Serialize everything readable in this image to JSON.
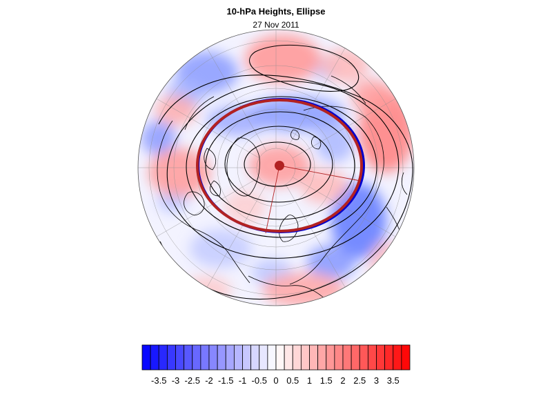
{
  "title": "10-hPa Heights, Ellipse",
  "subtitle": "27 Nov 2011",
  "colors": {
    "min": "#0000ff",
    "mid": "#ffffff",
    "max": "#ff0000",
    "ellipse_fit": "#b22222",
    "ellipse_outline": "#0000cc",
    "contour": "#000000",
    "coast": "#000000",
    "grid": "#8c8c8c"
  },
  "colorbar": {
    "min": -4,
    "max": 4,
    "step": 0.25,
    "tick_labels": [
      "-3.5",
      "-3",
      "-2.5",
      "-2",
      "-1.5",
      "-1",
      "-0.5",
      "0",
      "0.5",
      "1",
      "1.5",
      "2",
      "2.5",
      "3",
      "3.5"
    ]
  },
  "map": {
    "projection": "north-polar-stereographic",
    "field": "10-hPa height anomaly",
    "features": [
      "geopotential height contours",
      "coastlines",
      "lat-lon grid",
      "fitted ellipse",
      "ellipse centroid"
    ]
  }
}
